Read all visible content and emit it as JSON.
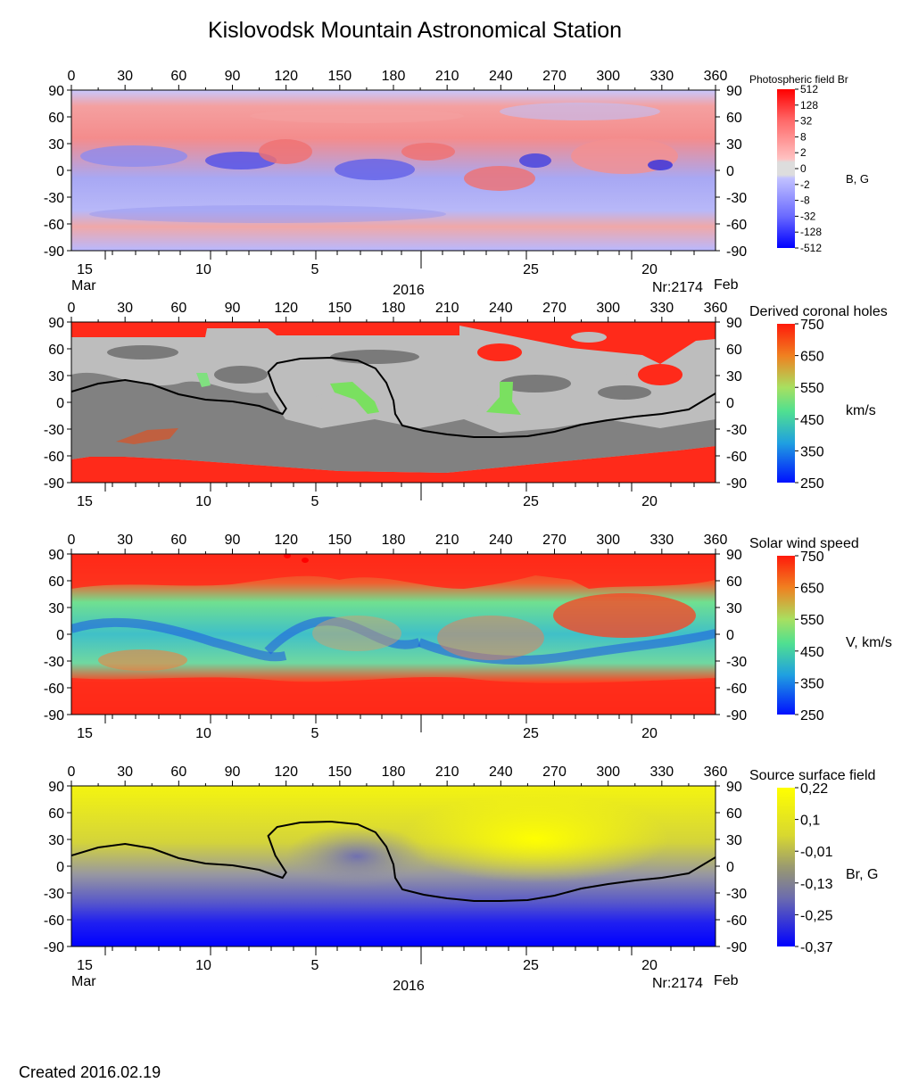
{
  "title": "Kislovodsk Mountain Astronomical Station",
  "created": "Created  2016.02.19",
  "colors": {
    "red": "#ff2a1a",
    "gray_light": "#bdbdbd",
    "gray_dark": "#777777",
    "yellow": "#f7f70a",
    "blue": "#1010f0"
  },
  "chart_data": [
    {
      "type": "heatmap",
      "title": "Photospheric field Br",
      "colorbar_label": "B, G",
      "colorbar_ticks": [
        "512",
        "128",
        "32",
        "8",
        "2",
        "0",
        "-2",
        "-8",
        "-32",
        "-128",
        "-512"
      ],
      "x_ticks": [
        "0",
        "30",
        "60",
        "90",
        "120",
        "150",
        "180",
        "210",
        "240",
        "270",
        "300",
        "330",
        "360"
      ],
      "y_ticks": [
        "90",
        "60",
        "30",
        "0",
        "-30",
        "-60",
        "-90"
      ],
      "xlim": [
        0,
        360
      ],
      "ylim": [
        -90,
        90
      ],
      "date_ticks": [
        "15",
        "10",
        "5",
        "25",
        "20"
      ],
      "date_labels": {
        "left": "Mar",
        "center": "2016",
        "rotation": "Nr:2174",
        "right": "Feb"
      }
    },
    {
      "type": "heatmap",
      "title": "Derived coronal holes",
      "colorbar_label": "km/s",
      "colorbar_ticks": [
        "750",
        "650",
        "550",
        "450",
        "350",
        "250"
      ],
      "x_ticks": [
        "0",
        "30",
        "60",
        "90",
        "120",
        "150",
        "180",
        "210",
        "240",
        "270",
        "300",
        "330",
        "360"
      ],
      "y_ticks": [
        "90",
        "60",
        "30",
        "0",
        "-30",
        "-60",
        "-90"
      ],
      "xlim": [
        0,
        360
      ],
      "ylim": [
        -90,
        90
      ],
      "date_ticks": [
        "15",
        "10",
        "5",
        "25",
        "20"
      ],
      "neutral_line": {
        "lon": [
          0,
          15,
          30,
          45,
          60,
          75,
          90,
          105,
          112,
          118,
          120,
          114,
          110,
          115,
          128,
          145,
          160,
          170,
          176,
          180,
          181,
          185,
          197,
          210,
          225,
          240,
          255,
          270,
          285,
          300,
          315,
          330,
          345,
          360
        ],
        "lat": [
          12,
          21,
          25,
          20,
          9,
          3,
          1,
          -4,
          -9,
          -13,
          -7,
          12,
          34,
          44,
          49,
          50,
          47,
          38,
          22,
          2,
          -13,
          -26,
          -32,
          -36,
          -39,
          -39,
          -38,
          -33,
          -25,
          -20,
          -16,
          -13,
          -8,
          10
        ]
      }
    },
    {
      "type": "heatmap",
      "title": "Solar wind speed",
      "colorbar_label": "V, km/s",
      "colorbar_ticks": [
        "750",
        "650",
        "550",
        "450",
        "350",
        "250"
      ],
      "x_ticks": [
        "0",
        "30",
        "60",
        "90",
        "120",
        "150",
        "180",
        "210",
        "240",
        "270",
        "300",
        "330",
        "360"
      ],
      "y_ticks": [
        "90",
        "60",
        "30",
        "0",
        "-30",
        "-60",
        "-90"
      ],
      "xlim": [
        0,
        360
      ],
      "ylim": [
        -90,
        90
      ],
      "date_ticks": [
        "15",
        "10",
        "5",
        "25",
        "20"
      ]
    },
    {
      "type": "heatmap",
      "title": "Source surface field",
      "colorbar_label": "Br, G",
      "colorbar_ticks": [
        "0,22",
        "0,1",
        "-0,01",
        "-0,13",
        "-0,25",
        "-0,37"
      ],
      "x_ticks": [
        "0",
        "30",
        "60",
        "90",
        "120",
        "150",
        "180",
        "210",
        "240",
        "270",
        "300",
        "330",
        "360"
      ],
      "y_ticks": [
        "90",
        "60",
        "30",
        "0",
        "-30",
        "-60",
        "-90"
      ],
      "xlim": [
        0,
        360
      ],
      "ylim": [
        -90,
        90
      ],
      "date_ticks": [
        "15",
        "10",
        "5",
        "25",
        "20"
      ],
      "date_labels": {
        "left": "Mar",
        "center": "2016",
        "rotation": "Nr:2174",
        "right": "Feb"
      },
      "neutral_line": {
        "lon": [
          0,
          15,
          30,
          45,
          60,
          75,
          90,
          105,
          112,
          118,
          120,
          114,
          110,
          115,
          128,
          145,
          160,
          170,
          176,
          180,
          181,
          185,
          197,
          210,
          225,
          240,
          255,
          270,
          285,
          300,
          315,
          330,
          345,
          360
        ],
        "lat": [
          12,
          21,
          25,
          20,
          9,
          3,
          1,
          -4,
          -9,
          -13,
          -7,
          12,
          34,
          44,
          49,
          50,
          47,
          38,
          22,
          2,
          -13,
          -26,
          -32,
          -36,
          -39,
          -39,
          -38,
          -33,
          -25,
          -20,
          -16,
          -13,
          -8,
          10
        ]
      }
    }
  ]
}
